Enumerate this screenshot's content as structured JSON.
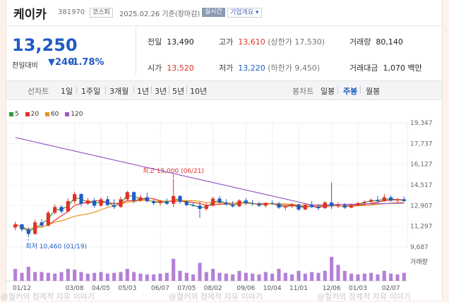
{
  "header": {
    "name": "케이카",
    "code": "381970",
    "market": "코스피",
    "date": "2025.02.26 기준(장마감)",
    "realtime": "실시간",
    "company_info": "기업개요 ▾"
  },
  "quote": {
    "price": "13,250",
    "change_label": "전일대비",
    "change": "▼240",
    "change_pct": "-1.78%",
    "prev_close_label": "전일",
    "prev_close": "13,490",
    "high_label": "고가",
    "high": "13,610",
    "upper_limit": "(상한가 17,530)",
    "volume_label": "거래량",
    "volume": "80,140",
    "open_label": "시가",
    "open": "13,520",
    "low_label": "저가",
    "low": "13,220",
    "lower_limit": "(하한가 9,450)",
    "amount_label": "거래대금",
    "amount": "1,070",
    "amount_unit": "백만"
  },
  "tabs": {
    "line_label": "선차트",
    "line_items": [
      "1일",
      "1주일",
      "3개월",
      "1년",
      "3년",
      "5년",
      "10년"
    ],
    "candle_label": "봉차트",
    "candle_items": [
      "일봉",
      "주봉",
      "월봉"
    ],
    "active_candle": "주봉"
  },
  "colors": {
    "up": "#e0302a",
    "down": "#1f5cc4",
    "ma5": "#2e9e3a",
    "ma20": "#e0302a",
    "ma60": "#e8951f",
    "ma120": "#9b57c9"
  },
  "watermark": "@헐커의 점제적 자유 이야기",
  "chart_data": {
    "type": "candlestick",
    "legend": [
      "5",
      "20",
      "60",
      "120"
    ],
    "y_ticks": [
      19347,
      17737,
      16127,
      14517,
      12907,
      11297,
      9687
    ],
    "ylim": [
      9687,
      19347
    ],
    "x_tick_labels": [
      "01/12",
      "03/08",
      "04/05",
      "05/03",
      "06/07",
      "07/05",
      "08/02",
      "09/06",
      "10/04",
      "11/01",
      "12/06",
      "01/03",
      "02/07"
    ],
    "x_tick_index": [
      1,
      9,
      13,
      17,
      22,
      26,
      30,
      35,
      39,
      43,
      48,
      52,
      57
    ],
    "annotations": {
      "max_label": "최고 15,000 (06/21)",
      "max_value": 15000,
      "max_index": 24,
      "min_label": "최저 10,460 (01/19)",
      "min_value": 10460,
      "min_index": 2
    },
    "volume_label": "거래량",
    "candles": [
      [
        11200,
        11650,
        11000,
        11450
      ],
      [
        11450,
        11480,
        10900,
        11050
      ],
      [
        11050,
        11200,
        10460,
        10700
      ],
      [
        10700,
        11800,
        10650,
        11600
      ],
      [
        11600,
        11850,
        11200,
        11350
      ],
      [
        11350,
        12500,
        11300,
        12350
      ],
      [
        12350,
        13000,
        12200,
        12800
      ],
      [
        12800,
        12950,
        12300,
        12450
      ],
      [
        12450,
        13450,
        12400,
        13250
      ],
      [
        13250,
        14000,
        13050,
        13800
      ],
      [
        13800,
        13850,
        12850,
        13050
      ],
      [
        13050,
        13500,
        12950,
        13300
      ],
      [
        13300,
        13500,
        12750,
        12900
      ],
      [
        12900,
        13550,
        12800,
        13400
      ],
      [
        13400,
        13650,
        12850,
        12950
      ],
      [
        12950,
        13400,
        12650,
        12800
      ],
      [
        12800,
        13600,
        12750,
        13400
      ],
      [
        13400,
        14050,
        13300,
        13950
      ],
      [
        13950,
        14000,
        13100,
        13300
      ],
      [
        13300,
        13750,
        13200,
        13550
      ],
      [
        13550,
        13900,
        13150,
        13250
      ],
      [
        13250,
        13400,
        12950,
        13100
      ],
      [
        13100,
        13350,
        12900,
        13250
      ],
      [
        13250,
        13450,
        12950,
        13050
      ],
      [
        13050,
        15000,
        12800,
        13650
      ],
      [
        13650,
        13700,
        13050,
        13200
      ],
      [
        13200,
        13300,
        12850,
        12950
      ],
      [
        12950,
        13100,
        12800,
        12900
      ],
      [
        12900,
        13200,
        11950,
        12650
      ],
      [
        12650,
        13100,
        12500,
        12900
      ],
      [
        12900,
        13600,
        12850,
        13450
      ],
      [
        13450,
        13650,
        13050,
        13150
      ],
      [
        13150,
        13400,
        12900,
        13000
      ],
      [
        13000,
        13250,
        12750,
        12850
      ],
      [
        12850,
        13400,
        12800,
        13300
      ],
      [
        13300,
        13500,
        12950,
        13100
      ],
      [
        13100,
        13350,
        12900,
        13050
      ],
      [
        13050,
        13200,
        12800,
        12900
      ],
      [
        12900,
        13150,
        12750,
        13100
      ],
      [
        13100,
        13300,
        12950,
        13050
      ],
      [
        13050,
        13200,
        12650,
        12750
      ],
      [
        12750,
        12950,
        12550,
        12850
      ],
      [
        12850,
        13100,
        12700,
        13000
      ],
      [
        13000,
        13050,
        12500,
        12600
      ],
      [
        12600,
        13050,
        12550,
        12950
      ],
      [
        12950,
        13250,
        12700,
        12800
      ],
      [
        12800,
        12950,
        12550,
        12700
      ],
      [
        12700,
        13250,
        12650,
        13150
      ],
      [
        13150,
        14700,
        12650,
        12850
      ],
      [
        12850,
        13150,
        12700,
        12950
      ],
      [
        12950,
        13100,
        12650,
        12750
      ],
      [
        12750,
        13050,
        12700,
        12950
      ],
      [
        12950,
        13200,
        12850,
        13100
      ],
      [
        13100,
        13300,
        12900,
        13200
      ],
      [
        13200,
        13450,
        13000,
        13350
      ],
      [
        13350,
        13650,
        13100,
        13250
      ],
      [
        13250,
        13800,
        13200,
        13550
      ],
      [
        13550,
        13700,
        13200,
        13300
      ],
      [
        13300,
        13500,
        13150,
        13400
      ],
      [
        13400,
        13610,
        13220,
        13250
      ]
    ],
    "volumes": [
      30,
      20,
      35,
      22,
      22,
      20,
      18,
      22,
      30,
      28,
      22,
      18,
      20,
      22,
      18,
      20,
      22,
      30,
      22,
      18,
      16,
      16,
      18,
      20,
      55,
      25,
      20,
      16,
      45,
      22,
      30,
      20,
      18,
      16,
      25,
      20,
      18,
      16,
      22,
      18,
      30,
      20,
      16,
      25,
      18,
      22,
      20,
      25,
      60,
      40,
      25,
      18,
      16,
      18,
      20,
      16,
      25,
      18,
      16,
      20
    ]
  }
}
